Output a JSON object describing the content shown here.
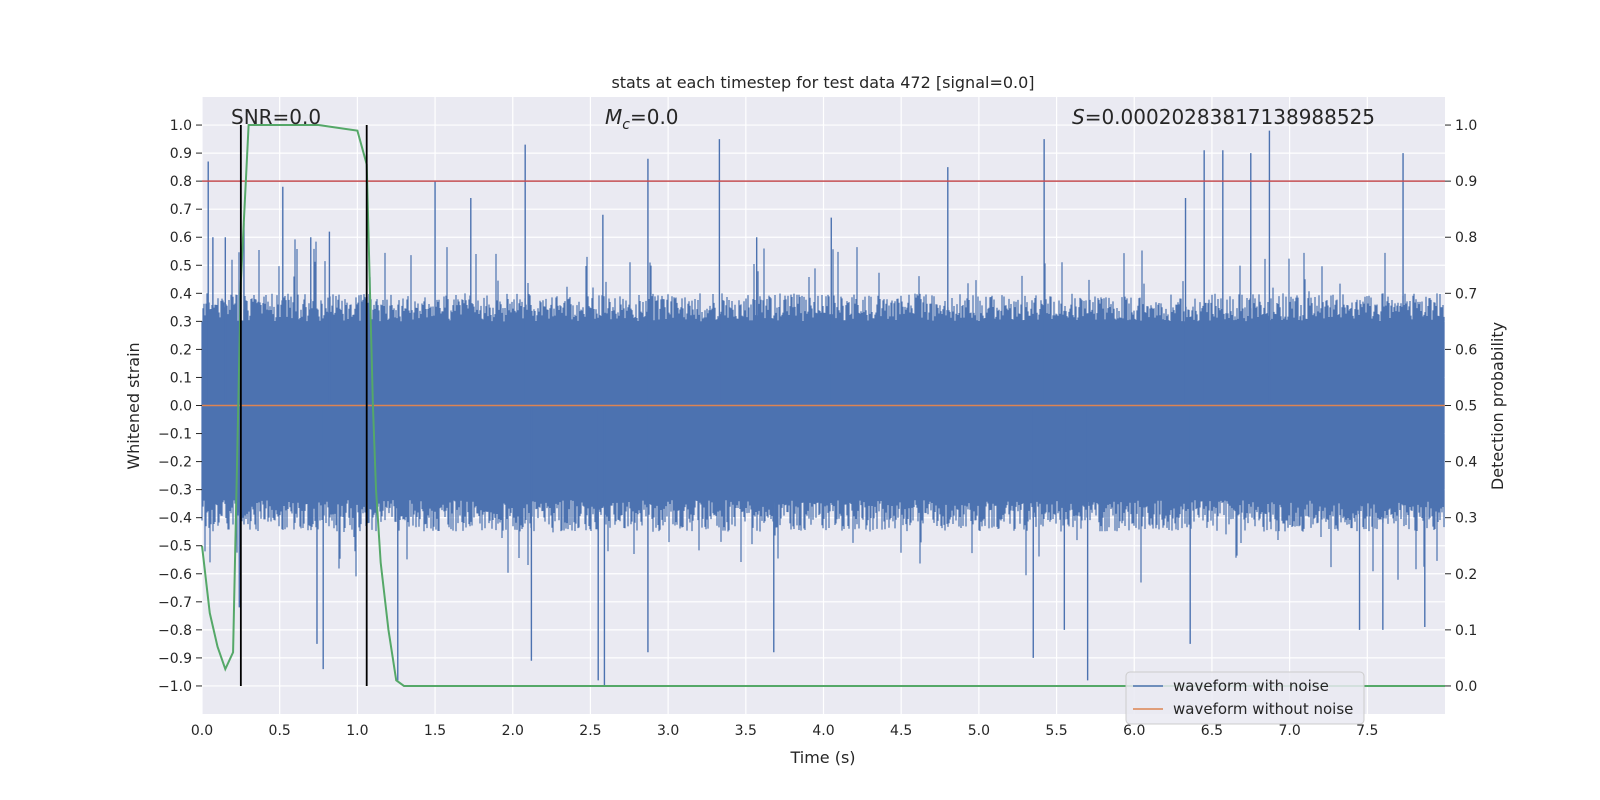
{
  "chart_data": {
    "type": "line",
    "title": "stats at each timestep for test data 472 [signal=0.0]",
    "xlabel": "Time (s)",
    "ylabel": "Whitened strain",
    "ylabel_right": "Detection probability",
    "xlim": [
      0.0,
      8.0
    ],
    "ylim": [
      -1.1,
      1.1
    ],
    "ylim_right": [
      -0.05,
      1.05
    ],
    "x_ticks": [
      0.0,
      0.5,
      1.0,
      1.5,
      2.0,
      2.5,
      3.0,
      3.5,
      4.0,
      4.5,
      5.0,
      5.5,
      6.0,
      6.5,
      7.0,
      7.5
    ],
    "x_tick_labels": [
      "0.0",
      "0.5",
      "1.0",
      "1.5",
      "2.0",
      "2.5",
      "3.0",
      "3.5",
      "4.0",
      "4.5",
      "5.0",
      "5.5",
      "6.0",
      "6.5",
      "7.0",
      "7.5"
    ],
    "y_ticks": [
      1.0,
      0.9,
      0.8,
      0.7,
      0.6,
      0.5,
      0.4,
      0.3,
      0.2,
      0.1,
      0.0,
      -0.1,
      -0.2,
      -0.3,
      -0.4,
      -0.5,
      -0.6,
      -0.7,
      -0.8,
      -0.9,
      -1.0
    ],
    "y_tick_labels": [
      "1.0",
      "0.9",
      "0.8",
      "0.7",
      "0.6",
      "0.5",
      "0.4",
      "0.3",
      "0.2",
      "0.1",
      "0.0",
      "−0.1",
      "−0.2",
      "−0.3",
      "−0.4",
      "−0.5",
      "−0.6",
      "−0.7",
      "−0.8",
      "−0.9",
      "−1.0"
    ],
    "y_right_ticks": [
      1.0,
      0.9,
      0.8,
      0.7,
      0.6,
      0.5,
      0.4,
      0.3,
      0.2,
      0.1,
      0.0
    ],
    "y_right_tick_labels": [
      "1.0",
      "0.9",
      "0.8",
      "0.7",
      "0.6",
      "0.5",
      "0.4",
      "0.3",
      "0.2",
      "0.1",
      "0.0"
    ],
    "grid": true,
    "legend_location": "lower right",
    "annotations": {
      "snr": "SNR=0.0",
      "mc_symbol": "M",
      "mc_sub": "c",
      "mc_value": "=0.0",
      "s_symbol": "S",
      "s_value": "=0.00020283817138988525"
    },
    "threshold": 0.8,
    "vlines_x": [
      0.25,
      1.06
    ],
    "series": [
      {
        "name": "waveform with noise",
        "color": "#4c72b0",
        "kind": "noise",
        "x_range": [
          0.0,
          8.0
        ],
        "envelope": [
          0.4,
          -0.45
        ],
        "peaks": [
          [
            0.04,
            0.87
          ],
          [
            0.07,
            0.6
          ],
          [
            0.15,
            0.6
          ],
          [
            0.27,
            0.65
          ],
          [
            0.52,
            0.78
          ],
          [
            0.7,
            0.6
          ],
          [
            0.82,
            0.62
          ],
          [
            1.5,
            0.8
          ],
          [
            1.73,
            0.74
          ],
          [
            2.08,
            0.93
          ],
          [
            2.58,
            0.68
          ],
          [
            2.87,
            0.88
          ],
          [
            3.33,
            0.95
          ],
          [
            3.57,
            0.6
          ],
          [
            4.05,
            0.67
          ],
          [
            4.8,
            0.85
          ],
          [
            5.42,
            0.95
          ],
          [
            6.33,
            0.74
          ],
          [
            6.45,
            0.91
          ],
          [
            6.57,
            0.91
          ],
          [
            6.75,
            0.9
          ],
          [
            6.87,
            0.98
          ],
          [
            7.73,
            0.9
          ]
        ],
        "troughs": [
          [
            0.24,
            -0.72
          ],
          [
            0.74,
            -0.85
          ],
          [
            0.78,
            -0.94
          ],
          [
            1.26,
            -0.98
          ],
          [
            2.12,
            -0.91
          ],
          [
            2.55,
            -0.98
          ],
          [
            2.59,
            -1.0
          ],
          [
            2.87,
            -0.88
          ],
          [
            3.68,
            -0.88
          ],
          [
            5.35,
            -0.9
          ],
          [
            5.55,
            -0.8
          ],
          [
            5.7,
            -0.98
          ],
          [
            6.36,
            -0.85
          ],
          [
            7.45,
            -0.8
          ],
          [
            7.6,
            -0.8
          ],
          [
            7.87,
            -0.79
          ]
        ]
      },
      {
        "name": "waveform without noise",
        "color": "#dd8452",
        "kind": "line",
        "x": [
          0.0,
          8.0
        ],
        "y": [
          0.0,
          0.0
        ]
      },
      {
        "name": "Detection probability",
        "color": "#55a868",
        "kind": "line",
        "axis": "right",
        "x": [
          0.0,
          0.05,
          0.1,
          0.15,
          0.2,
          0.25,
          0.3,
          0.35,
          0.5,
          0.75,
          1.0,
          1.06,
          1.1,
          1.12,
          1.15,
          1.2,
          1.25,
          1.3,
          8.0
        ],
        "y": [
          0.25,
          0.13,
          0.07,
          0.03,
          0.06,
          0.72,
          1.0,
          1.0,
          1.0,
          1.0,
          0.99,
          0.93,
          0.5,
          0.35,
          0.22,
          0.1,
          0.01,
          0.0,
          0.0
        ]
      }
    ]
  }
}
